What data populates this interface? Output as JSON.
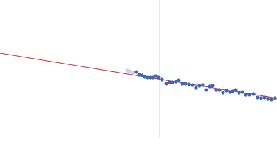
{
  "chart_data": {
    "type": "scatter",
    "xlim": [
      0,
      400
    ],
    "ylim": [
      0,
      200
    ],
    "vline": {
      "x": 230,
      "color": "#c8d4ec"
    },
    "fit": {
      "color": "#d62728",
      "x": [
        0,
        400
      ],
      "values": [
        123,
        58
      ]
    },
    "series": [
      {
        "color": "#c5d3ea",
        "x": [
          184,
          187,
          190,
          193
        ],
        "values": [
          98,
          97,
          96,
          95
        ]
      },
      {
        "color": "#3f66b5",
        "x": [
          197,
          201,
          205,
          209,
          213,
          217,
          221,
          225,
          229,
          234,
          240,
          245,
          249,
          254,
          258,
          263,
          268,
          273,
          278,
          283,
          288,
          293,
          298,
          303,
          307,
          312,
          317,
          322,
          327,
          332,
          336,
          340,
          345,
          350,
          355,
          360,
          366,
          372,
          377,
          382,
          387,
          392,
          397
        ],
        "values": [
          96,
          92,
          91,
          89,
          88,
          88,
          88,
          90,
          88,
          85,
          79,
          81,
          81,
          82,
          84,
          79,
          79,
          78,
          77,
          73,
          76,
          77,
          70,
          75,
          76,
          70,
          70,
          66,
          69,
          67,
          68,
          70,
          66,
          67,
          63,
          63,
          64,
          59,
          58,
          59,
          57,
          56,
          58
        ]
      }
    ]
  }
}
